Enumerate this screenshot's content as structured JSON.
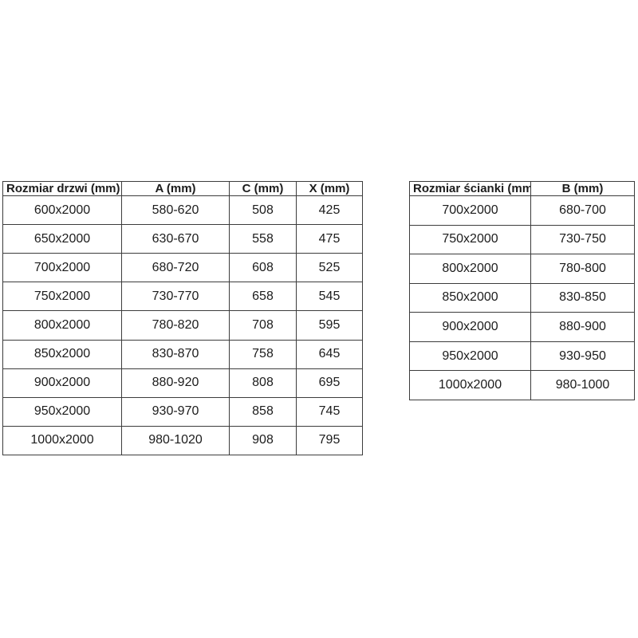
{
  "page": {
    "background_color": "#ffffff",
    "table_border_color": "#3c3c3c",
    "text_color": "#1c1c1c"
  },
  "doors_table": {
    "headers": [
      "Rozmiar drzwi (mm)",
      "A (mm)",
      "C (mm)",
      "X (mm)"
    ],
    "rows": [
      [
        "600x2000",
        "580-620",
        "508",
        "425"
      ],
      [
        "650x2000",
        "630-670",
        "558",
        "475"
      ],
      [
        "700x2000",
        "680-720",
        "608",
        "525"
      ],
      [
        "750x2000",
        "730-770",
        "658",
        "545"
      ],
      [
        "800x2000",
        "780-820",
        "708",
        "595"
      ],
      [
        "850x2000",
        "830-870",
        "758",
        "645"
      ],
      [
        "900x2000",
        "880-920",
        "808",
        "695"
      ],
      [
        "950x2000",
        "930-970",
        "858",
        "745"
      ],
      [
        "1000x2000",
        "980-1020",
        "908",
        "795"
      ]
    ]
  },
  "walls_table": {
    "headers": [
      "Rozmiar ścianki (mm)",
      "B (mm)"
    ],
    "rows": [
      [
        "700x2000",
        "680-700"
      ],
      [
        "750x2000",
        "730-750"
      ],
      [
        "800x2000",
        "780-800"
      ],
      [
        "850x2000",
        "830-850"
      ],
      [
        "900x2000",
        "880-900"
      ],
      [
        "950x2000",
        "930-950"
      ],
      [
        "1000x2000",
        "980-1000"
      ]
    ]
  }
}
